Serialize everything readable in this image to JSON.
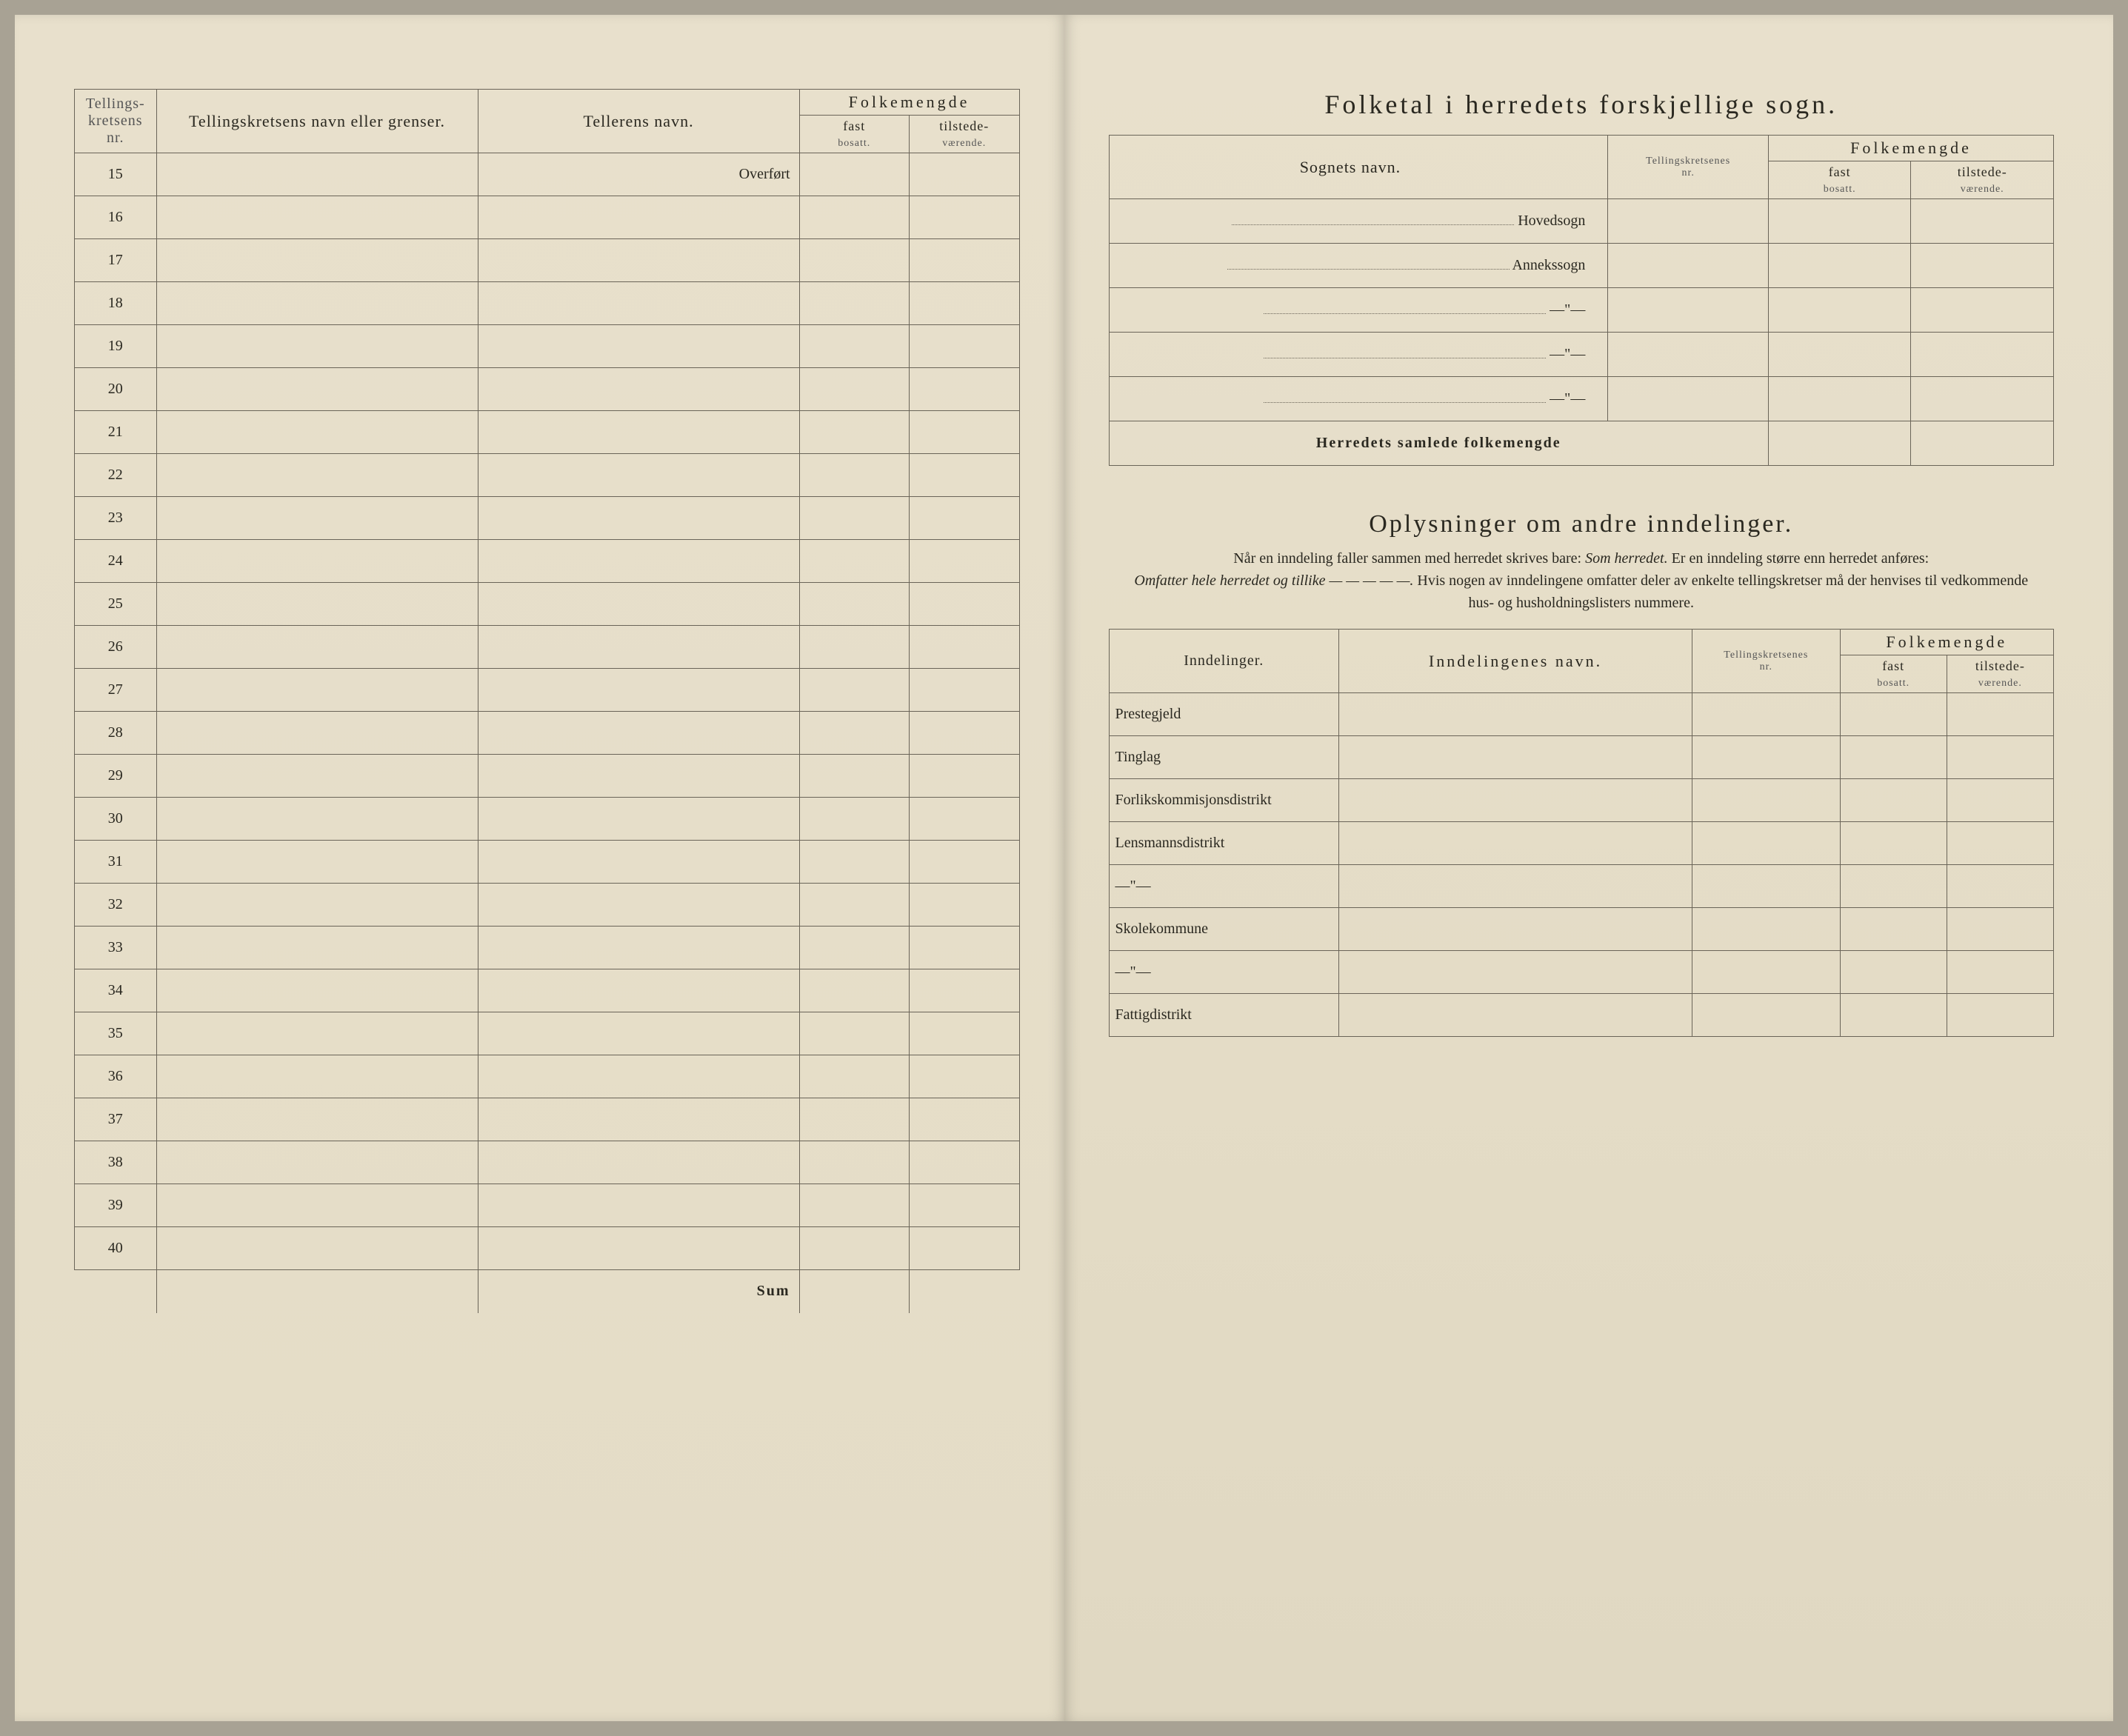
{
  "left": {
    "headers": {
      "nr": "Tellings-\nkretsens\nnr.",
      "krets": "Tellingskretsens navn eller grenser.",
      "teller": "Tellerens navn.",
      "folkemengde": "Folkemengde",
      "fast": "fast",
      "bosatt": "bosatt.",
      "tilstede": "tilstede-",
      "vaerende": "værende."
    },
    "overfort": "Overført",
    "row_numbers": [
      "15",
      "16",
      "17",
      "18",
      "19",
      "20",
      "21",
      "22",
      "23",
      "24",
      "25",
      "26",
      "27",
      "28",
      "29",
      "30",
      "31",
      "32",
      "33",
      "34",
      "35",
      "36",
      "37",
      "38",
      "39",
      "40"
    ],
    "sum": "Sum"
  },
  "right": {
    "title1": "Folketal i herredets forskjellige sogn.",
    "sogn_headers": {
      "sognet": "Sognets navn.",
      "tk": "Tellingskretsenes\nnr.",
      "folkemengde": "Folkemengde",
      "fast": "fast",
      "bosatt": "bosatt.",
      "tilstede": "tilstede-",
      "vaerende": "værende."
    },
    "sogn_rows": [
      "Hovedsogn",
      "Annekssogn",
      "—\"—",
      "—\"—",
      "—\"—"
    ],
    "samlede": "Herredets samlede folkemengde",
    "title2": "Oplysninger om andre inndelinger.",
    "instr1": "Når en inndeling faller sammen med herredet skrives bare: ",
    "instr1_em": "Som herredet.",
    "instr2": " Er en inndeling større enn herredet anføres: ",
    "instr2_em": "Omfatter hele herredet og tillike — — — — —.",
    "instr3": " Hvis nogen av inndelingene omfatter deler av enkelte tellingskretser må der henvises til vedkommende hus- og husholdningslisters nummere.",
    "innd_headers": {
      "innd": "Inndelinger.",
      "inndname": "Inndelingenes navn.",
      "tk": "Tellingskretsenes\nnr.",
      "folkemengde": "Folkemengde",
      "fast": "fast",
      "bosatt": "bosatt.",
      "tilstede": "tilstede-",
      "vaerende": "værende."
    },
    "innd_rows": [
      "Prestegjeld",
      "Tinglag",
      "Forlikskommisjonsdistrikt",
      "Lensmannsdistrikt",
      "—\"—",
      "Skolekommune",
      "—\"—",
      "Fattigdistrikt"
    ]
  },
  "colors": {
    "line": "#6a6458",
    "text": "#2a2820",
    "paper": "#e6dec8",
    "clip": "#b89070"
  }
}
